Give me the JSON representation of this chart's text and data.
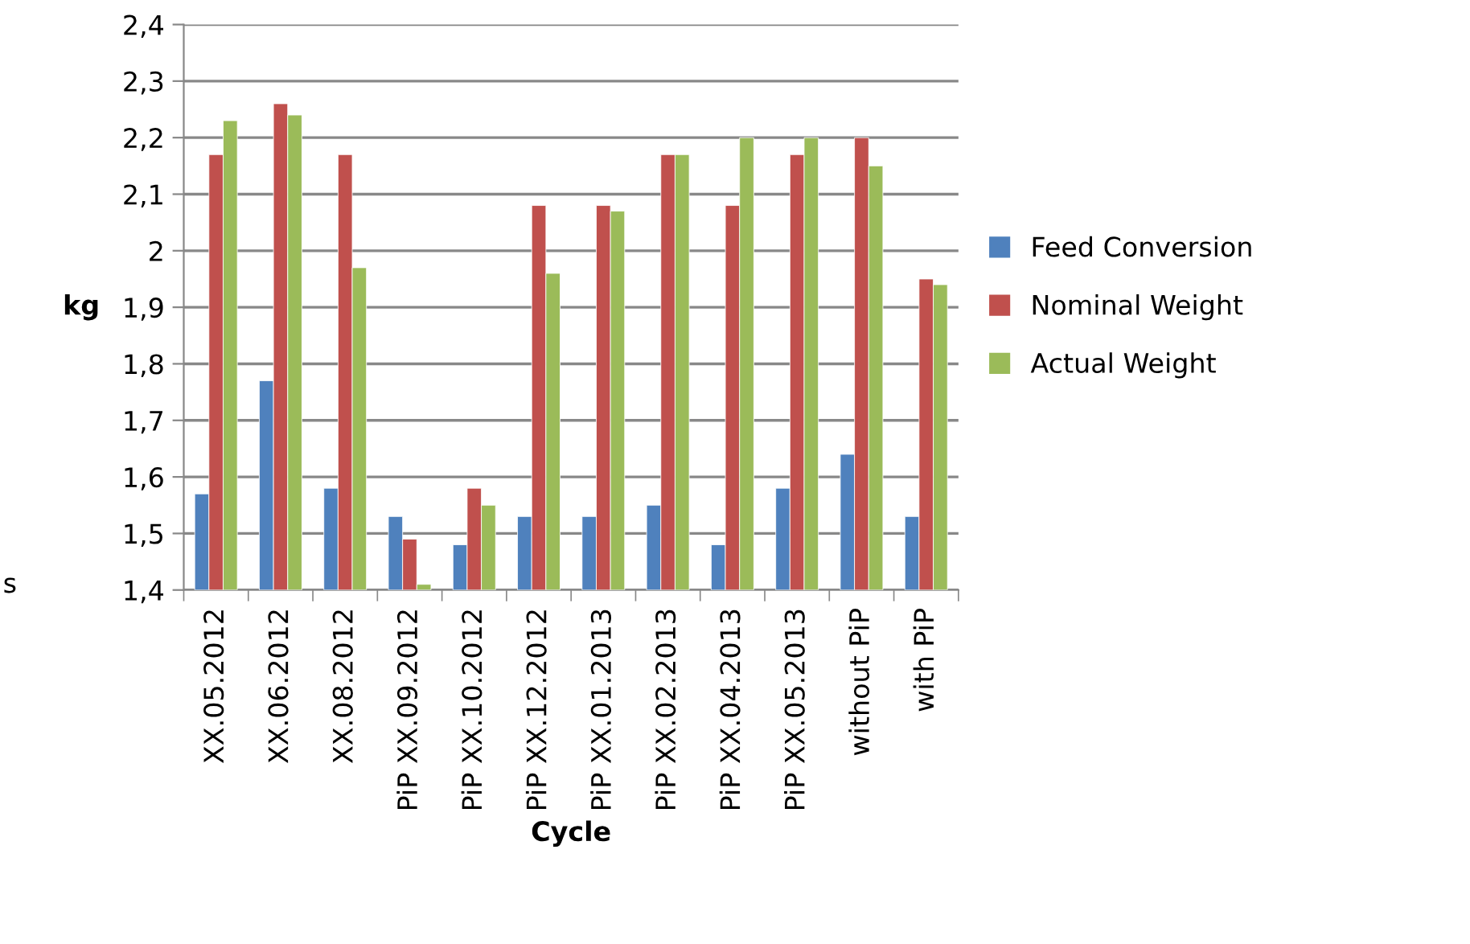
{
  "chart_data": {
    "type": "bar",
    "xlabel": "Cycle",
    "ylabel": "kg",
    "categories": [
      "XX.05.2012",
      "XX.06.2012",
      "XX.08.2012",
      "PiP XX.09.2012",
      "PiP XX.10.2012",
      "PiP XX.12.2012",
      "PiP XX.01.2013",
      "PiP XX.02.2013",
      "PiP XX.04.2013",
      "PiP XX.05.2013",
      "without PiP",
      "with PiP"
    ],
    "series": [
      {
        "name": "Feed Conversion",
        "color": "#4f81bd",
        "values": [
          1.57,
          1.77,
          1.58,
          1.53,
          1.48,
          1.53,
          1.53,
          1.55,
          1.48,
          1.58,
          1.64,
          1.53
        ]
      },
      {
        "name": "Nominal Weight",
        "color": "#c0504d",
        "values": [
          2.17,
          2.26,
          2.17,
          1.49,
          1.58,
          2.08,
          2.08,
          2.17,
          2.08,
          2.17,
          2.2,
          1.95
        ]
      },
      {
        "name": "Actual Weight",
        "color": "#9bbb59",
        "values": [
          2.23,
          2.24,
          1.97,
          1.41,
          1.55,
          1.96,
          2.07,
          2.17,
          2.2,
          2.2,
          2.15,
          1.94
        ]
      }
    ],
    "ylim": [
      1.4,
      2.4
    ],
    "yticks": [
      {
        "value": 1.4,
        "label": "1,4"
      },
      {
        "value": 1.5,
        "label": "1,5"
      },
      {
        "value": 1.6,
        "label": "1,6"
      },
      {
        "value": 1.7,
        "label": "1,7"
      },
      {
        "value": 1.8,
        "label": "1,8"
      },
      {
        "value": 1.9,
        "label": "1,9"
      },
      2,
      {
        "value": 2.1,
        "label": "2,1"
      },
      {
        "value": 2.2,
        "label": "2,2"
      },
      {
        "value": 2.3,
        "label": "2,3"
      },
      {
        "value": 2.4,
        "label": "2,4"
      }
    ],
    "grid": "y",
    "legend": "right",
    "annotations": [
      "s"
    ]
  }
}
